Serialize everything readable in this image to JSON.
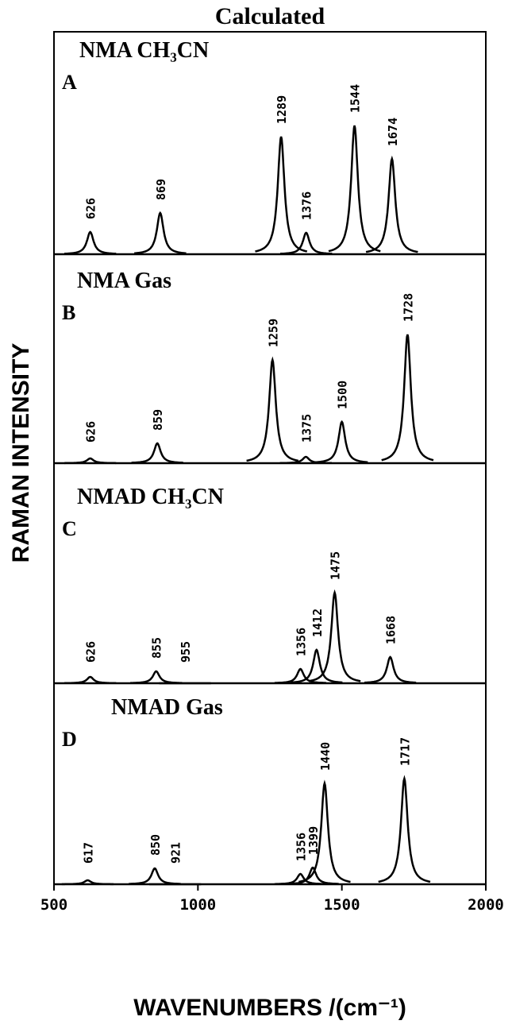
{
  "chart_data": {
    "type": "line",
    "title": "Calculated",
    "xlabel": "WAVENUMBERS /(cm⁻¹)",
    "ylabel": "RAMAN INTENSITY",
    "xlim": [
      500,
      2000
    ],
    "xticks": [
      500,
      1000,
      1500,
      2000
    ],
    "color": "#000000",
    "panels": [
      {
        "letter": "A",
        "label": "NMA  CH₃CN",
        "ylim": [
          0,
          100
        ],
        "x": [
          626,
          869,
          1289,
          1376,
          1544,
          1674
        ],
        "values": [
          14,
          26,
          74,
          13.5,
          81,
          60
        ]
      },
      {
        "letter": "B",
        "label": "NMA Gas",
        "ylim": [
          0,
          100
        ],
        "x": [
          626,
          859,
          1259,
          1375,
          1500,
          1728
        ],
        "values": [
          3,
          12.5,
          65,
          4,
          26,
          81
        ]
      },
      {
        "letter": "C",
        "label": "NMAD CH₃CN",
        "ylim": [
          0,
          100
        ],
        "x": [
          626,
          855,
          955,
          1356,
          1412,
          1475,
          1668
        ],
        "values": [
          4,
          7.5,
          0,
          9,
          21,
          57,
          16.5
        ]
      },
      {
        "letter": "D",
        "label": "NMAD Gas",
        "ylim": [
          0,
          100
        ],
        "x": [
          617,
          850,
          921,
          1356,
          1399,
          1440,
          1717
        ],
        "values": [
          2.5,
          10,
          0,
          6.5,
          10.5,
          63.5,
          66.5
        ]
      }
    ]
  }
}
